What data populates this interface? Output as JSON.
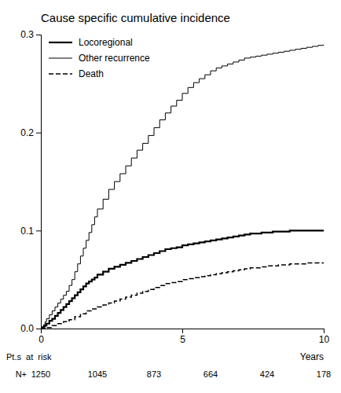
{
  "chart_data": {
    "type": "line",
    "title": "Cause specific cumulative incidence",
    "x_label": "Years",
    "xlim": [
      0,
      10
    ],
    "xticks": [
      0,
      5,
      10
    ],
    "ylim": [
      0,
      0.3
    ],
    "yticks": [
      {
        "value": 0.0,
        "label": "0.0"
      },
      0.1,
      0.2,
      0.3
    ],
    "grid": false,
    "legend": "upper left",
    "series": [
      {
        "name": "Locoregional",
        "color": "#000000",
        "line_style": "solid",
        "x": [
          0.0,
          0.05,
          0.1,
          0.15,
          0.2,
          0.3,
          0.4,
          0.5,
          0.6,
          0.7,
          0.8,
          0.9,
          1.0,
          1.1,
          1.2,
          1.3,
          1.4,
          1.5,
          1.6,
          1.7,
          1.8,
          1.9,
          2.0,
          2.2,
          2.4,
          2.6,
          2.8,
          3.0,
          3.2,
          3.4,
          3.6,
          3.8,
          4.0,
          4.2,
          4.4,
          4.6,
          4.8,
          5.0,
          5.2,
          5.4,
          5.6,
          5.8,
          6.0,
          6.2,
          6.4,
          6.6,
          6.8,
          7.0,
          7.2,
          7.4,
          7.6,
          7.8,
          8.0,
          8.2,
          8.4,
          8.6,
          8.8,
          9.0,
          9.2,
          9.4,
          9.6,
          9.8,
          10.0
        ],
        "values": [
          0.0,
          0.001,
          0.002,
          0.003,
          0.005,
          0.008,
          0.01,
          0.013,
          0.016,
          0.019,
          0.022,
          0.025,
          0.028,
          0.031,
          0.034,
          0.037,
          0.04,
          0.043,
          0.046,
          0.048,
          0.05,
          0.052,
          0.055,
          0.058,
          0.061,
          0.063,
          0.065,
          0.067,
          0.069,
          0.071,
          0.073,
          0.075,
          0.077,
          0.079,
          0.081,
          0.082,
          0.083,
          0.085,
          0.086,
          0.087,
          0.088,
          0.089,
          0.09,
          0.091,
          0.092,
          0.093,
          0.094,
          0.095,
          0.096,
          0.097,
          0.097,
          0.098,
          0.098,
          0.099,
          0.099,
          0.099,
          0.1,
          0.1,
          0.1,
          0.1,
          0.1,
          0.1,
          0.1
        ]
      },
      {
        "name": "Other recurrence",
        "color": "#000000",
        "line_style": "solid",
        "x": [
          0.0,
          0.05,
          0.1,
          0.15,
          0.2,
          0.3,
          0.4,
          0.5,
          0.6,
          0.7,
          0.8,
          0.9,
          1.0,
          1.1,
          1.2,
          1.3,
          1.4,
          1.5,
          1.6,
          1.7,
          1.8,
          1.9,
          2.0,
          2.2,
          2.4,
          2.6,
          2.8,
          3.0,
          3.2,
          3.4,
          3.6,
          3.8,
          4.0,
          4.2,
          4.4,
          4.6,
          4.8,
          5.0,
          5.2,
          5.4,
          5.6,
          5.8,
          6.0,
          6.2,
          6.4,
          6.6,
          6.8,
          7.0,
          7.2,
          7.4,
          7.6,
          7.8,
          8.0,
          8.2,
          8.4,
          8.6,
          8.8,
          9.0,
          9.2,
          9.4,
          9.6,
          9.8,
          10.0
        ],
        "values": [
          0.0,
          0.002,
          0.004,
          0.007,
          0.01,
          0.014,
          0.018,
          0.022,
          0.026,
          0.03,
          0.034,
          0.038,
          0.044,
          0.05,
          0.058,
          0.066,
          0.074,
          0.082,
          0.09,
          0.098,
          0.106,
          0.114,
          0.122,
          0.132,
          0.142,
          0.15,
          0.158,
          0.166,
          0.174,
          0.182,
          0.189,
          0.197,
          0.205,
          0.213,
          0.22,
          0.227,
          0.233,
          0.24,
          0.246,
          0.251,
          0.255,
          0.259,
          0.263,
          0.266,
          0.268,
          0.27,
          0.272,
          0.274,
          0.276,
          0.277,
          0.278,
          0.279,
          0.28,
          0.281,
          0.282,
          0.283,
          0.284,
          0.285,
          0.286,
          0.287,
          0.288,
          0.289,
          0.29
        ]
      },
      {
        "name": "Death",
        "color": "#000000",
        "line_style": "dashed",
        "x": [
          0.0,
          0.2,
          0.4,
          0.6,
          0.8,
          1.0,
          1.2,
          1.4,
          1.6,
          1.8,
          2.0,
          2.2,
          2.4,
          2.6,
          2.8,
          3.0,
          3.2,
          3.4,
          3.6,
          3.8,
          4.0,
          4.2,
          4.4,
          4.6,
          4.8,
          5.0,
          5.2,
          5.4,
          5.6,
          5.8,
          6.0,
          6.2,
          6.4,
          6.6,
          6.8,
          7.0,
          7.2,
          7.4,
          7.6,
          7.8,
          8.0,
          8.2,
          8.4,
          8.6,
          8.8,
          9.0,
          9.2,
          9.4,
          9.6,
          9.8,
          10.0
        ],
        "values": [
          0.0,
          0.001,
          0.003,
          0.005,
          0.007,
          0.009,
          0.012,
          0.015,
          0.018,
          0.02,
          0.022,
          0.024,
          0.026,
          0.028,
          0.03,
          0.032,
          0.034,
          0.036,
          0.038,
          0.04,
          0.042,
          0.044,
          0.046,
          0.047,
          0.048,
          0.05,
          0.051,
          0.052,
          0.053,
          0.054,
          0.055,
          0.056,
          0.057,
          0.058,
          0.059,
          0.06,
          0.061,
          0.062,
          0.062,
          0.063,
          0.064,
          0.064,
          0.065,
          0.065,
          0.066,
          0.066,
          0.066,
          0.067,
          0.067,
          0.067,
          0.067
        ]
      }
    ],
    "at_risk": {
      "label": "Pt.s  at  risk",
      "row_label": "N+",
      "x": [
        0,
        2,
        4,
        6,
        8,
        10
      ],
      "values": [
        "1250",
        "1045",
        "873",
        "664",
        "424",
        "178"
      ]
    }
  }
}
